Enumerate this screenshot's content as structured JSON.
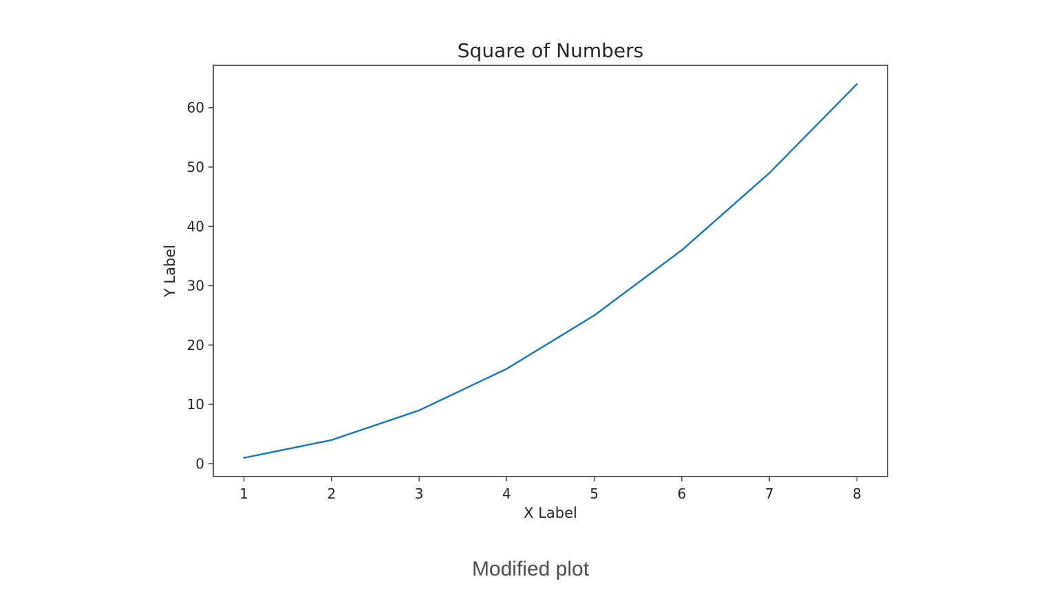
{
  "page": {
    "background": "#ffffff"
  },
  "caption": {
    "text": "Modified plot"
  },
  "chart_data": {
    "type": "line",
    "title": "Square of Numbers",
    "xlabel": "X Label",
    "ylabel": "Y Label",
    "x": [
      1,
      2,
      3,
      4,
      5,
      6,
      7,
      8
    ],
    "y": [
      1,
      4,
      9,
      16,
      25,
      36,
      49,
      64
    ],
    "xticks": [
      1,
      2,
      3,
      4,
      5,
      6,
      7,
      8
    ],
    "yticks": [
      0,
      10,
      20,
      30,
      40,
      50,
      60
    ],
    "xlim": [
      0.65,
      8.35
    ],
    "ylim": [
      -2.15,
      67.15
    ],
    "grid": false,
    "legend": "none",
    "line_color": "#1f77b4",
    "axis_color": "#3a3a3a",
    "text_color": "#262626",
    "caption_color": "#4d4d4d"
  }
}
